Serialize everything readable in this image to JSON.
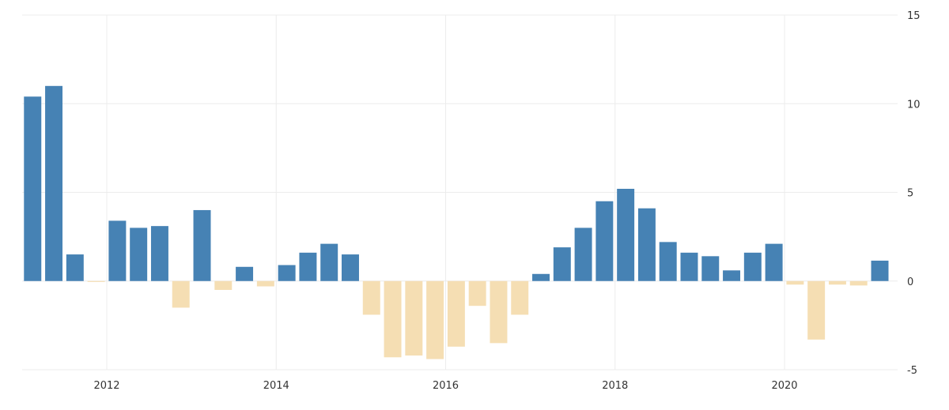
{
  "chart_data": {
    "type": "bar",
    "title": "",
    "xlabel": "",
    "ylabel": "",
    "ylim": [
      -5,
      15
    ],
    "yticks": [
      -5,
      0,
      5,
      10,
      15
    ],
    "xticks": [
      "2012",
      "2014",
      "2016",
      "2018",
      "2020"
    ],
    "grid": true,
    "legend": "none",
    "colors": {
      "positive": "#4682b4",
      "negative": "#f5deb3",
      "grid": "#ececec",
      "text": "#333333"
    },
    "x": [
      "2011-Q1",
      "2011-Q2",
      "2011-Q3",
      "2011-Q4",
      "2012-Q1",
      "2012-Q2",
      "2012-Q3",
      "2012-Q4",
      "2013-Q1",
      "2013-Q2",
      "2013-Q3",
      "2013-Q4",
      "2014-Q1",
      "2014-Q2",
      "2014-Q3",
      "2014-Q4",
      "2015-Q1",
      "2015-Q2",
      "2015-Q3",
      "2015-Q4",
      "2016-Q1",
      "2016-Q2",
      "2016-Q3",
      "2016-Q4",
      "2017-Q1",
      "2017-Q2",
      "2017-Q3",
      "2017-Q4",
      "2018-Q1",
      "2018-Q2",
      "2018-Q3",
      "2018-Q4",
      "2019-Q1",
      "2019-Q2",
      "2019-Q3",
      "2019-Q4",
      "2020-Q1",
      "2020-Q2",
      "2020-Q3",
      "2020-Q4",
      "2021-Q1"
    ],
    "values": [
      10.4,
      11.0,
      1.5,
      -0.05,
      3.4,
      3.0,
      3.1,
      -1.5,
      4.0,
      -0.5,
      0.8,
      -0.3,
      0.9,
      1.6,
      2.1,
      1.5,
      -1.9,
      -4.3,
      -4.2,
      -4.4,
      -3.7,
      -1.4,
      -3.5,
      -1.9,
      0.4,
      1.9,
      3.0,
      4.5,
      5.2,
      4.1,
      2.2,
      1.6,
      1.4,
      0.6,
      1.6,
      2.1,
      -0.2,
      -3.3,
      -0.2,
      -0.25,
      1.15
    ]
  }
}
